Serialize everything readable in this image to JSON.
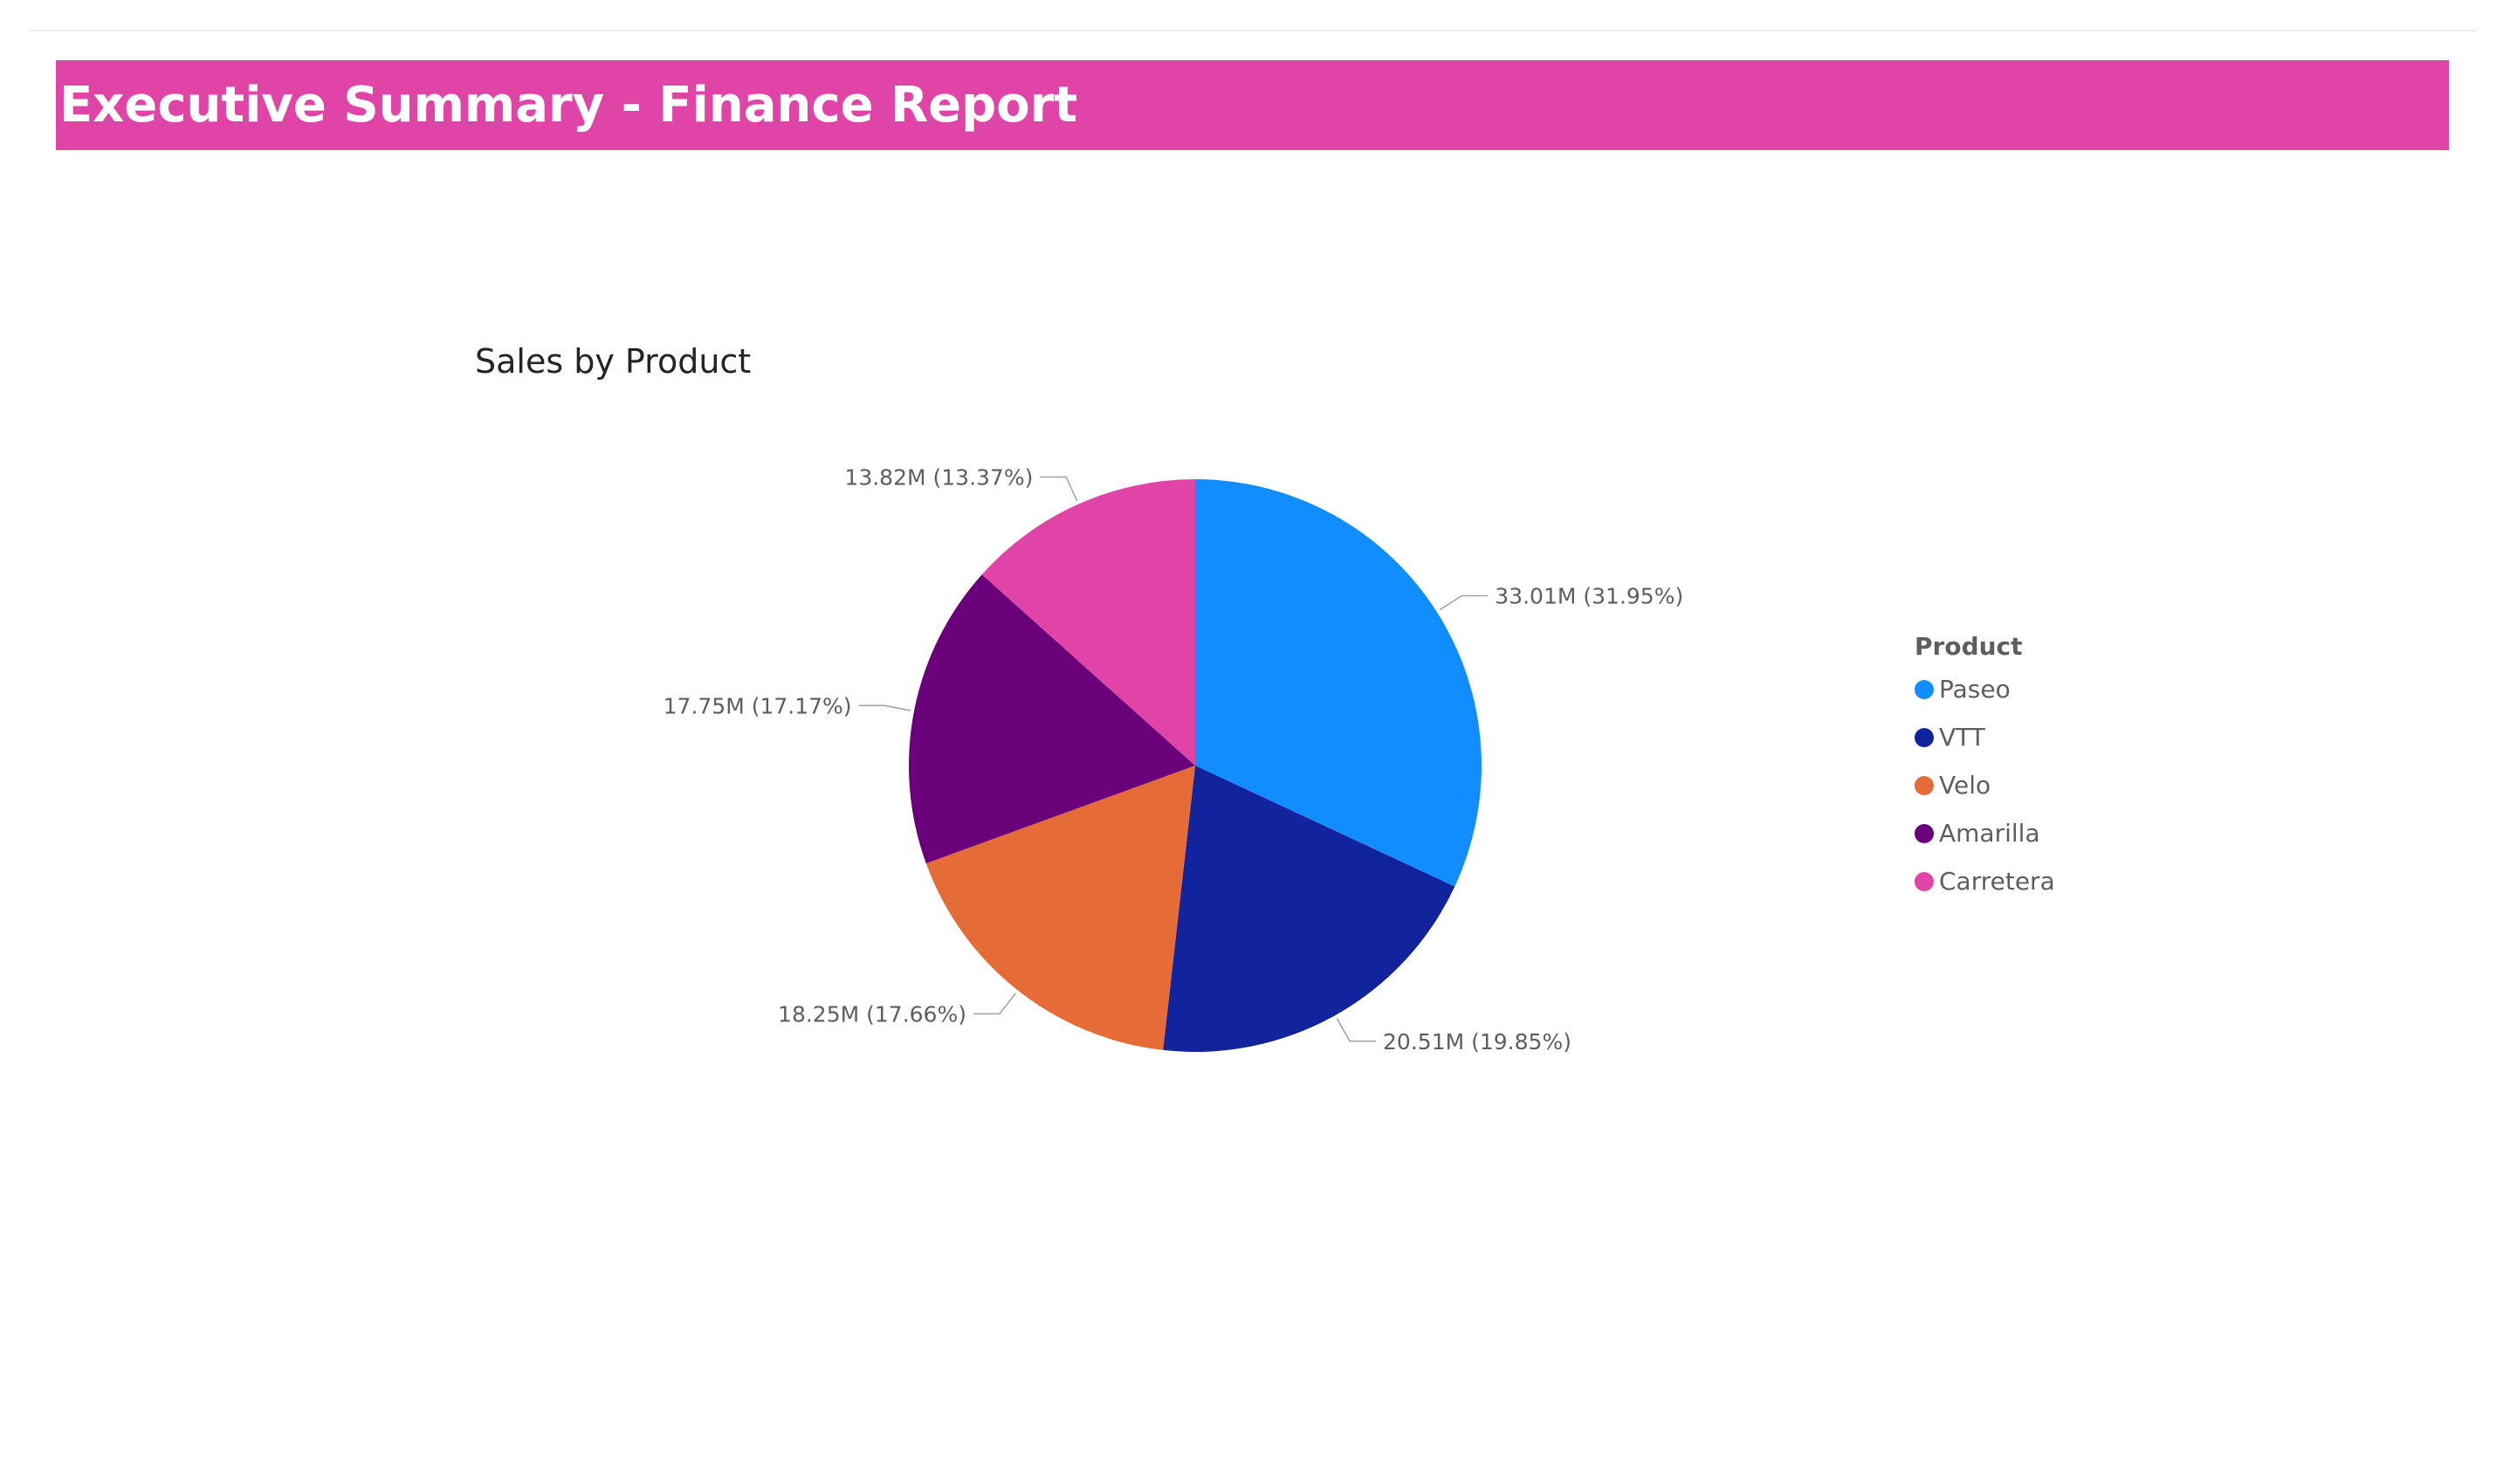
{
  "page": {
    "title": "Executive Summary - Finance Report"
  },
  "chart_data": {
    "type": "pie",
    "title": "Sales by Product",
    "legend_title": "Product",
    "legend_position": "right",
    "series": [
      {
        "name": "Paseo",
        "value": 33.01,
        "percent": 31.95,
        "label": "33.01M (31.95%)",
        "color": "#118dff"
      },
      {
        "name": "VTT",
        "value": 20.51,
        "percent": 19.85,
        "label": "20.51M (19.85%)",
        "color": "#12239e"
      },
      {
        "name": "Velo",
        "value": 18.25,
        "percent": 17.66,
        "label": "18.25M (17.66%)",
        "color": "#e66c37"
      },
      {
        "name": "Amarilla",
        "value": 17.75,
        "percent": 17.17,
        "label": "17.75M (17.17%)",
        "color": "#6b007b"
      },
      {
        "name": "Carretera",
        "value": 13.82,
        "percent": 13.37,
        "label": "13.82M (13.37%)",
        "color": "#e044a7"
      }
    ]
  }
}
